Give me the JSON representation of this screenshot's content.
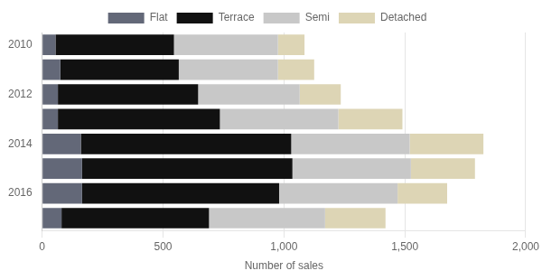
{
  "chart_data": {
    "type": "bar",
    "orientation": "horizontal",
    "stacked": true,
    "xlabel": "Number of sales",
    "categories": [
      "2010",
      null,
      "2012",
      null,
      "2014",
      null,
      "2016",
      null
    ],
    "series": [
      {
        "name": "Flat",
        "color": "#636878",
        "values": [
          55,
          75,
          65,
          65,
          160,
          165,
          165,
          80
        ]
      },
      {
        "name": "Terrace",
        "color": "#111111",
        "values": [
          490,
          490,
          580,
          670,
          870,
          870,
          815,
          610
        ]
      },
      {
        "name": "Semi",
        "color": "#c8c8c8",
        "values": [
          430,
          410,
          420,
          490,
          490,
          490,
          490,
          480
        ]
      },
      {
        "name": "Detached",
        "color": "#ddd5b5",
        "values": [
          110,
          150,
          170,
          265,
          305,
          265,
          205,
          250
        ]
      }
    ],
    "xlim": [
      0,
      2000
    ],
    "xticks": [
      0,
      500,
      {
        "value": 1000,
        "label": "1,000"
      },
      {
        "value": 1500,
        "label": "1,500"
      },
      {
        "value": 2000,
        "label": "2,000"
      }
    ],
    "grid": true,
    "legend": "top"
  }
}
